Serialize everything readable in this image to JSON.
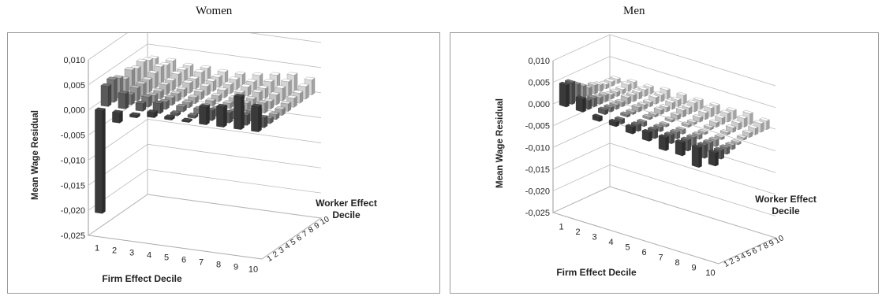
{
  "chart_data": [
    {
      "type": "bar",
      "title": "Women",
      "xlabel": "Firm Effect Decile",
      "ylabel": "Mean Wage Residual",
      "zlabel": [
        "Worker Effect",
        "Decile"
      ],
      "ylim": [
        -0.025,
        0.01
      ],
      "yticks": [
        "0,010",
        "0,005",
        "0,000",
        "-0,005",
        "-0,010",
        "-0,015",
        "-0,020",
        "-0,025"
      ],
      "categories": [
        "1",
        "2",
        "3",
        "4",
        "5",
        "6",
        "7",
        "8",
        "9",
        "10"
      ],
      "depth_categories": [
        "1",
        "2",
        "3",
        "4",
        "5",
        "6",
        "7",
        "8",
        "9",
        "10"
      ],
      "values": [
        [
          -0.0205,
          -0.002,
          -0.0005,
          0.001,
          0.0005,
          0.0003,
          0.0035,
          0.004,
          0.0065,
          0.005
        ],
        [
          0.004,
          0.003,
          0.0015,
          0.002,
          0.0005,
          0.0005,
          0.002,
          0.002,
          0.002,
          0.002
        ],
        [
          0.0045,
          0.002,
          0.002,
          0.0015,
          0.001,
          0.001,
          0.0015,
          0.0015,
          0.002,
          0.001
        ],
        [
          0.004,
          0.0025,
          0.0015,
          0.0015,
          0.001,
          0.0008,
          0.001,
          0.0015,
          0.0015,
          0.001
        ],
        [
          0.003,
          0.0025,
          0.0015,
          0.0015,
          0.0012,
          0.001,
          0.001,
          0.0015,
          0.002,
          0.0012
        ],
        [
          0.004,
          0.0025,
          0.002,
          0.0015,
          0.0015,
          0.0012,
          0.0012,
          0.0015,
          0.0015,
          0.0015
        ],
        [
          0.0035,
          0.003,
          0.002,
          0.002,
          0.0018,
          0.0015,
          0.0015,
          0.002,
          0.002,
          0.0018
        ],
        [
          0.004,
          0.0035,
          0.0025,
          0.002,
          0.002,
          0.0018,
          0.0018,
          0.002,
          0.0025,
          0.002
        ],
        [
          0.0035,
          0.003,
          0.0025,
          0.0025,
          0.002,
          0.002,
          0.002,
          0.0025,
          0.003,
          0.0025
        ],
        [
          0.003,
          0.003,
          0.0025,
          0.0025,
          0.0022,
          0.0022,
          0.0025,
          0.003,
          0.0035,
          0.003
        ]
      ]
    },
    {
      "type": "bar",
      "title": "Men",
      "xlabel": "Firm Effect Decile",
      "ylabel": "Mean Wage Residual",
      "zlabel": [
        "Worker Effect",
        "Decile"
      ],
      "ylim": [
        -0.025,
        0.01
      ],
      "yticks": [
        "0,010",
        "0,005",
        "0,000",
        "-0,005",
        "-0,010",
        "-0,015",
        "-0,020",
        "-0,025"
      ],
      "categories": [
        "1",
        "2",
        "3",
        "4",
        "5",
        "6",
        "7",
        "8",
        "9",
        "10"
      ],
      "depth_categories": [
        "1",
        "2",
        "3",
        "4",
        "5",
        "6",
        "7",
        "8",
        "9",
        "10"
      ],
      "values": [
        [
          0.005,
          0.003,
          -0.001,
          -0.001,
          -0.0015,
          -0.002,
          -0.003,
          -0.003,
          -0.0045,
          -0.003
        ],
        [
          0.005,
          0.002,
          0.001,
          -0.001,
          -0.0015,
          -0.002,
          -0.002,
          -0.0025,
          -0.003,
          -0.002
        ],
        [
          0.004,
          0.002,
          0.001,
          0.0005,
          -0.001,
          -0.001,
          -0.0015,
          -0.002,
          -0.002,
          -0.0015
        ],
        [
          0.003,
          0.0015,
          0.001,
          0.0005,
          0.0005,
          -0.0005,
          -0.001,
          -0.001,
          -0.0015,
          -0.001
        ],
        [
          0.002,
          0.0015,
          0.001,
          0.001,
          0.0005,
          0.0005,
          0.0005,
          -0.0005,
          -0.0005,
          -0.0005
        ],
        [
          0.002,
          0.001,
          0.0015,
          0.001,
          0.001,
          0.001,
          0.0005,
          0.0005,
          0.0005,
          0.0005
        ],
        [
          0.0015,
          0.001,
          0.0015,
          0.001,
          0.001,
          0.0015,
          0.001,
          0.001,
          0.001,
          0.001
        ],
        [
          0.001,
          0.001,
          0.0015,
          0.0015,
          0.0015,
          0.0015,
          0.0015,
          0.0015,
          0.0015,
          0.0015
        ],
        [
          0.001,
          0.0015,
          0.0015,
          0.0015,
          0.0015,
          0.002,
          0.002,
          0.002,
          0.002,
          0.002
        ],
        [
          0.001,
          0.0015,
          0.0015,
          0.002,
          0.002,
          0.002,
          0.002,
          0.002,
          0.0025,
          0.002
        ]
      ]
    }
  ]
}
